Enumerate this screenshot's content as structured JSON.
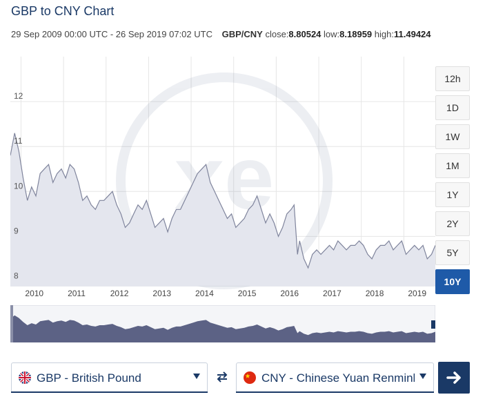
{
  "header": {
    "title": "GBP to CNY Chart",
    "date_range": "29 Sep 2009 00:00 UTC - 26 Sep 2019 07:02 UTC",
    "pair": "GBP/CNY",
    "close_label": "close:",
    "close_value": "8.80524",
    "low_label": "low:",
    "low_value": "8.18959",
    "high_label": "high:",
    "high_value": "11.49424"
  },
  "range_buttons": [
    {
      "label": "12h",
      "active": false
    },
    {
      "label": "1D",
      "active": false
    },
    {
      "label": "1W",
      "active": false
    },
    {
      "label": "1M",
      "active": false
    },
    {
      "label": "1Y",
      "active": false
    },
    {
      "label": "2Y",
      "active": false
    },
    {
      "label": "5Y",
      "active": false
    },
    {
      "label": "10Y",
      "active": true
    }
  ],
  "converter": {
    "from_label": "GBP - British Pound",
    "to_label": "CNY - Chinese Yuan Renminbi",
    "from_flag_icon": "uk-flag-icon",
    "to_flag_icon": "china-flag-icon",
    "swap_icon": "swap-arrows-icon",
    "go_icon": "arrow-right-icon"
  },
  "colors": {
    "accent": "#1a3966",
    "active_button": "#1e5aa8",
    "line": "#7f849c",
    "area": "#e8e9f0"
  },
  "chart_data": {
    "type": "area",
    "x_tick_labels": [
      "2010",
      "2011",
      "2012",
      "2013",
      "2014",
      "2015",
      "2016",
      "2017",
      "2018",
      "2019"
    ],
    "y_tick_labels": [
      "8",
      "9",
      "10",
      "11",
      "12"
    ],
    "ylim": [
      7.9,
      13.0
    ],
    "xlim": [
      2009.75,
      2019.74
    ],
    "grid": true,
    "x": [
      2009.75,
      2009.85,
      2009.95,
      2010.05,
      2010.15,
      2010.25,
      2010.35,
      2010.45,
      2010.55,
      2010.65,
      2010.75,
      2010.85,
      2010.95,
      2011.05,
      2011.15,
      2011.25,
      2011.35,
      2011.45,
      2011.55,
      2011.65,
      2011.75,
      2011.85,
      2011.95,
      2012.05,
      2012.15,
      2012.25,
      2012.35,
      2012.45,
      2012.55,
      2012.65,
      2012.75,
      2012.85,
      2012.95,
      2013.05,
      2013.15,
      2013.25,
      2013.35,
      2013.45,
      2013.55,
      2013.65,
      2013.75,
      2013.85,
      2013.95,
      2014.05,
      2014.15,
      2014.25,
      2014.35,
      2014.45,
      2014.55,
      2014.65,
      2014.75,
      2014.85,
      2014.95,
      2015.05,
      2015.15,
      2015.25,
      2015.35,
      2015.45,
      2015.55,
      2015.65,
      2015.75,
      2015.85,
      2015.95,
      2016.05,
      2016.15,
      2016.25,
      2016.35,
      2016.42,
      2016.5,
      2016.55,
      2016.65,
      2016.75,
      2016.85,
      2016.95,
      2017.05,
      2017.15,
      2017.25,
      2017.35,
      2017.45,
      2017.55,
      2017.65,
      2017.75,
      2017.85,
      2017.95,
      2018.05,
      2018.15,
      2018.25,
      2018.35,
      2018.45,
      2018.55,
      2018.65,
      2018.75,
      2018.85,
      2018.95,
      2019.05,
      2019.15,
      2019.25,
      2019.35,
      2019.45,
      2019.55,
      2019.65,
      2019.74
    ],
    "values": [
      10.8,
      11.3,
      10.9,
      10.3,
      9.8,
      10.1,
      9.9,
      10.4,
      10.5,
      10.6,
      10.2,
      10.4,
      10.5,
      10.3,
      10.6,
      10.5,
      10.2,
      9.8,
      9.9,
      9.7,
      9.6,
      9.8,
      9.8,
      9.9,
      10.0,
      9.7,
      9.5,
      9.2,
      9.3,
      9.5,
      9.7,
      9.6,
      9.8,
      9.5,
      9.2,
      9.3,
      9.4,
      9.1,
      9.4,
      9.6,
      9.6,
      9.8,
      10.0,
      10.2,
      10.4,
      10.5,
      10.6,
      10.2,
      10.0,
      9.8,
      9.6,
      9.4,
      9.5,
      9.2,
      9.3,
      9.4,
      9.6,
      9.7,
      9.9,
      9.6,
      9.3,
      9.5,
      9.3,
      9.0,
      9.2,
      9.5,
      9.6,
      9.7,
      8.6,
      8.9,
      8.5,
      8.3,
      8.6,
      8.7,
      8.6,
      8.7,
      8.8,
      8.7,
      8.9,
      8.8,
      8.7,
      8.8,
      8.8,
      8.9,
      8.8,
      8.6,
      8.5,
      8.7,
      8.8,
      8.8,
      8.9,
      8.7,
      8.8,
      8.9,
      8.6,
      8.7,
      8.8,
      8.7,
      8.8,
      8.5,
      8.6,
      8.8
    ]
  }
}
